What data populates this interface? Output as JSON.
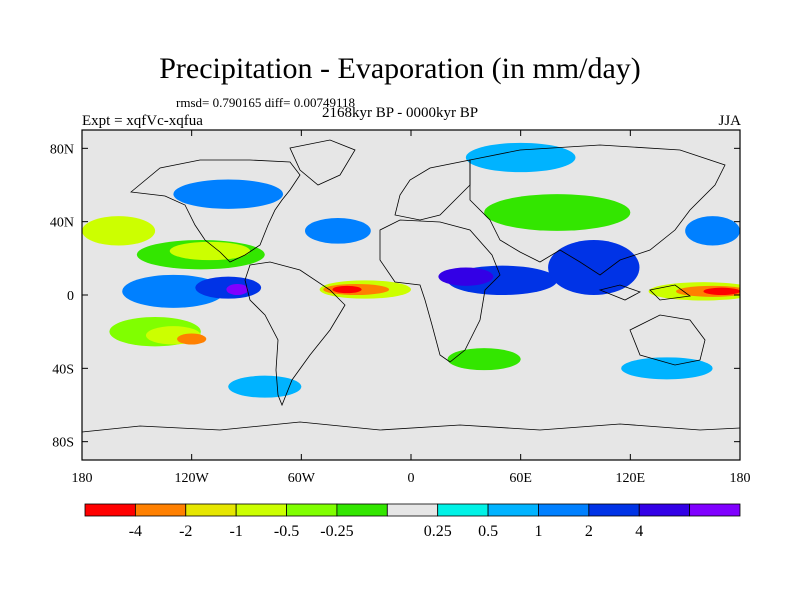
{
  "title": "Precipitation - Evaporation (in mm/day)",
  "stats": "rmsd= 0.790165 diff= 0.00749118",
  "experiment": "Expt = xqfVc-xqfua",
  "period": "2168kyr BP - 0000kyr BP",
  "season": "JJA",
  "lat_ticks": [
    {
      "label": "80N",
      "value": 80
    },
    {
      "label": "40N",
      "value": 40
    },
    {
      "label": "0",
      "value": 0
    },
    {
      "label": "40S",
      "value": -40
    },
    {
      "label": "80S",
      "value": -80
    }
  ],
  "lon_ticks": [
    {
      "label": "180",
      "value": -180
    },
    {
      "label": "120W",
      "value": -120
    },
    {
      "label": "60W",
      "value": -60
    },
    {
      "label": "0",
      "value": 0
    },
    {
      "label": "60E",
      "value": 60
    },
    {
      "label": "120E",
      "value": 120
    },
    {
      "label": "180",
      "value": 180
    }
  ],
  "colorbar": {
    "colors": [
      "#ff0000",
      "#ff8000",
      "#e6e600",
      "#ccff00",
      "#80ff00",
      "#33e600",
      "#e6e6e6",
      "#00f2e6",
      "#00b3ff",
      "#0080ff",
      "#0033e6",
      "#3300e6",
      "#8000ff"
    ],
    "labels": [
      "-4",
      "-2",
      "-1",
      "-0.5",
      "-0.25",
      "0.25",
      "0.5",
      "1",
      "2",
      "4"
    ]
  },
  "features": [
    {
      "lon": -130,
      "lat": 2,
      "rx": 28,
      "ry": 9,
      "color": "#0080ff",
      "level": 1
    },
    {
      "lon": -100,
      "lat": 4,
      "rx": 18,
      "ry": 6,
      "color": "#0033e6",
      "level": 2
    },
    {
      "lon": -95,
      "lat": 3,
      "rx": 6,
      "ry": 3,
      "color": "#8000ff",
      "level": 4
    },
    {
      "lon": -115,
      "lat": 22,
      "rx": 35,
      "ry": 8,
      "color": "#33e600",
      "level": -0.25
    },
    {
      "lon": -110,
      "lat": 24,
      "rx": 22,
      "ry": 5,
      "color": "#ccff00",
      "level": -0.5
    },
    {
      "lon": -25,
      "lat": 3,
      "rx": 25,
      "ry": 5,
      "color": "#ccff00",
      "level": -0.5
    },
    {
      "lon": -30,
      "lat": 3,
      "rx": 18,
      "ry": 3,
      "color": "#ff8000",
      "level": -2
    },
    {
      "lon": -35,
      "lat": 3,
      "rx": 8,
      "ry": 2,
      "color": "#ff0000",
      "level": -4
    },
    {
      "lon": 50,
      "lat": 8,
      "rx": 30,
      "ry": 8,
      "color": "#0033e6",
      "level": 2
    },
    {
      "lon": 30,
      "lat": 10,
      "rx": 15,
      "ry": 5,
      "color": "#3300e6",
      "level": 4
    },
    {
      "lon": 100,
      "lat": 15,
      "rx": 25,
      "ry": 15,
      "color": "#0033e6",
      "level": 2
    },
    {
      "lon": 160,
      "lat": 2,
      "rx": 30,
      "ry": 5,
      "color": "#ccff00",
      "level": -0.5
    },
    {
      "lon": 165,
      "lat": 2,
      "rx": 20,
      "ry": 3,
      "color": "#ff8000",
      "level": -2
    },
    {
      "lon": 170,
      "lat": 2,
      "rx": 10,
      "ry": 2,
      "color": "#ff0000",
      "level": -4
    },
    {
      "lon": -140,
      "lat": -20,
      "rx": 25,
      "ry": 8,
      "color": "#80ff00",
      "level": -0.5
    },
    {
      "lon": -130,
      "lat": -22,
      "rx": 15,
      "ry": 5,
      "color": "#ccff00",
      "level": -0.5
    },
    {
      "lon": -120,
      "lat": -24,
      "rx": 8,
      "ry": 3,
      "color": "#ff8000",
      "level": -2
    },
    {
      "lon": 80,
      "lat": 45,
      "rx": 40,
      "ry": 10,
      "color": "#33e600",
      "level": -0.25
    },
    {
      "lon": -160,
      "lat": 35,
      "rx": 20,
      "ry": 8,
      "color": "#ccff00",
      "level": -0.5
    },
    {
      "lon": 165,
      "lat": 35,
      "rx": 15,
      "ry": 8,
      "color": "#0080ff",
      "level": 1
    },
    {
      "lon": 40,
      "lat": -35,
      "rx": 20,
      "ry": 6,
      "color": "#33e600",
      "level": -0.25
    },
    {
      "lon": -40,
      "lat": 35,
      "rx": 18,
      "ry": 7,
      "color": "#0080ff",
      "level": 1
    },
    {
      "lon": -100,
      "lat": 55,
      "rx": 30,
      "ry": 8,
      "color": "#0080ff",
      "level": 1
    },
    {
      "lon": 60,
      "lat": 75,
      "rx": 30,
      "ry": 8,
      "color": "#00b3ff",
      "level": 0.5
    },
    {
      "lon": -80,
      "lat": -50,
      "rx": 20,
      "ry": 6,
      "color": "#00b3ff",
      "level": 0.5
    },
    {
      "lon": 140,
      "lat": -40,
      "rx": 25,
      "ry": 6,
      "color": "#00b3ff",
      "level": 0.5
    }
  ]
}
